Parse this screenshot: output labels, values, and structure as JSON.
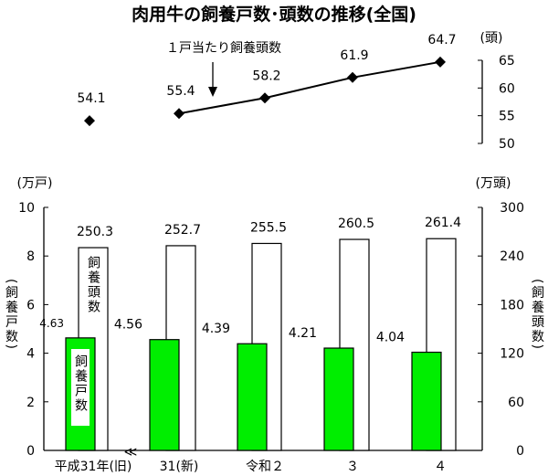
{
  "chart_data": [
    {
      "type": "line",
      "title": "肉用牛の飼養戸数･頭数の推移(全国)",
      "annotation": "１戸当たり飼養頭数",
      "unit_label": "(頭)",
      "ylim": [
        50,
        65
      ],
      "yticks": [
        "65",
        "60",
        "55",
        "50"
      ],
      "categories": [
        "平成31年(旧)",
        "31(新)",
        "令和２",
        "３",
        "４"
      ],
      "values": [
        54.1,
        55.4,
        58.2,
        61.9,
        64.7
      ],
      "value_labels": [
        "54.1",
        "55.4",
        "58.2",
        "61.9",
        "64.7"
      ],
      "connected_from_index": 1
    },
    {
      "type": "bar",
      "categories": [
        "平成31年(旧)",
        "31(新)",
        "令和２",
        "３",
        "４"
      ],
      "left_axis": {
        "unit_label": "(万戸)",
        "label": "(飼養戸数)",
        "ylim": [
          0,
          10
        ],
        "ticks": [
          "0",
          "2",
          "4",
          "6",
          "8",
          "10"
        ]
      },
      "right_axis": {
        "unit_label": "(万頭)",
        "label": "(飼養頭数)",
        "ylim": [
          0,
          300
        ],
        "ticks": [
          "0",
          "60",
          "120",
          "180",
          "240",
          "300"
        ]
      },
      "series": [
        {
          "name": "飼養戸数",
          "axis": "left",
          "color": "#00ee00",
          "values": [
            4.63,
            4.56,
            4.39,
            4.21,
            4.04
          ],
          "value_labels": [
            "4.63",
            "4.56",
            "4.39",
            "4.21",
            "4.04"
          ]
        },
        {
          "name": "飼養頭数",
          "axis": "right",
          "color": "#ffffff",
          "values": [
            250.3,
            252.7,
            255.5,
            260.5,
            261.4
          ],
          "value_labels": [
            "250.3",
            "252.7",
            "255.5",
            "260.5",
            "261.4"
          ]
        }
      ],
      "break_mark": "≪"
    }
  ]
}
